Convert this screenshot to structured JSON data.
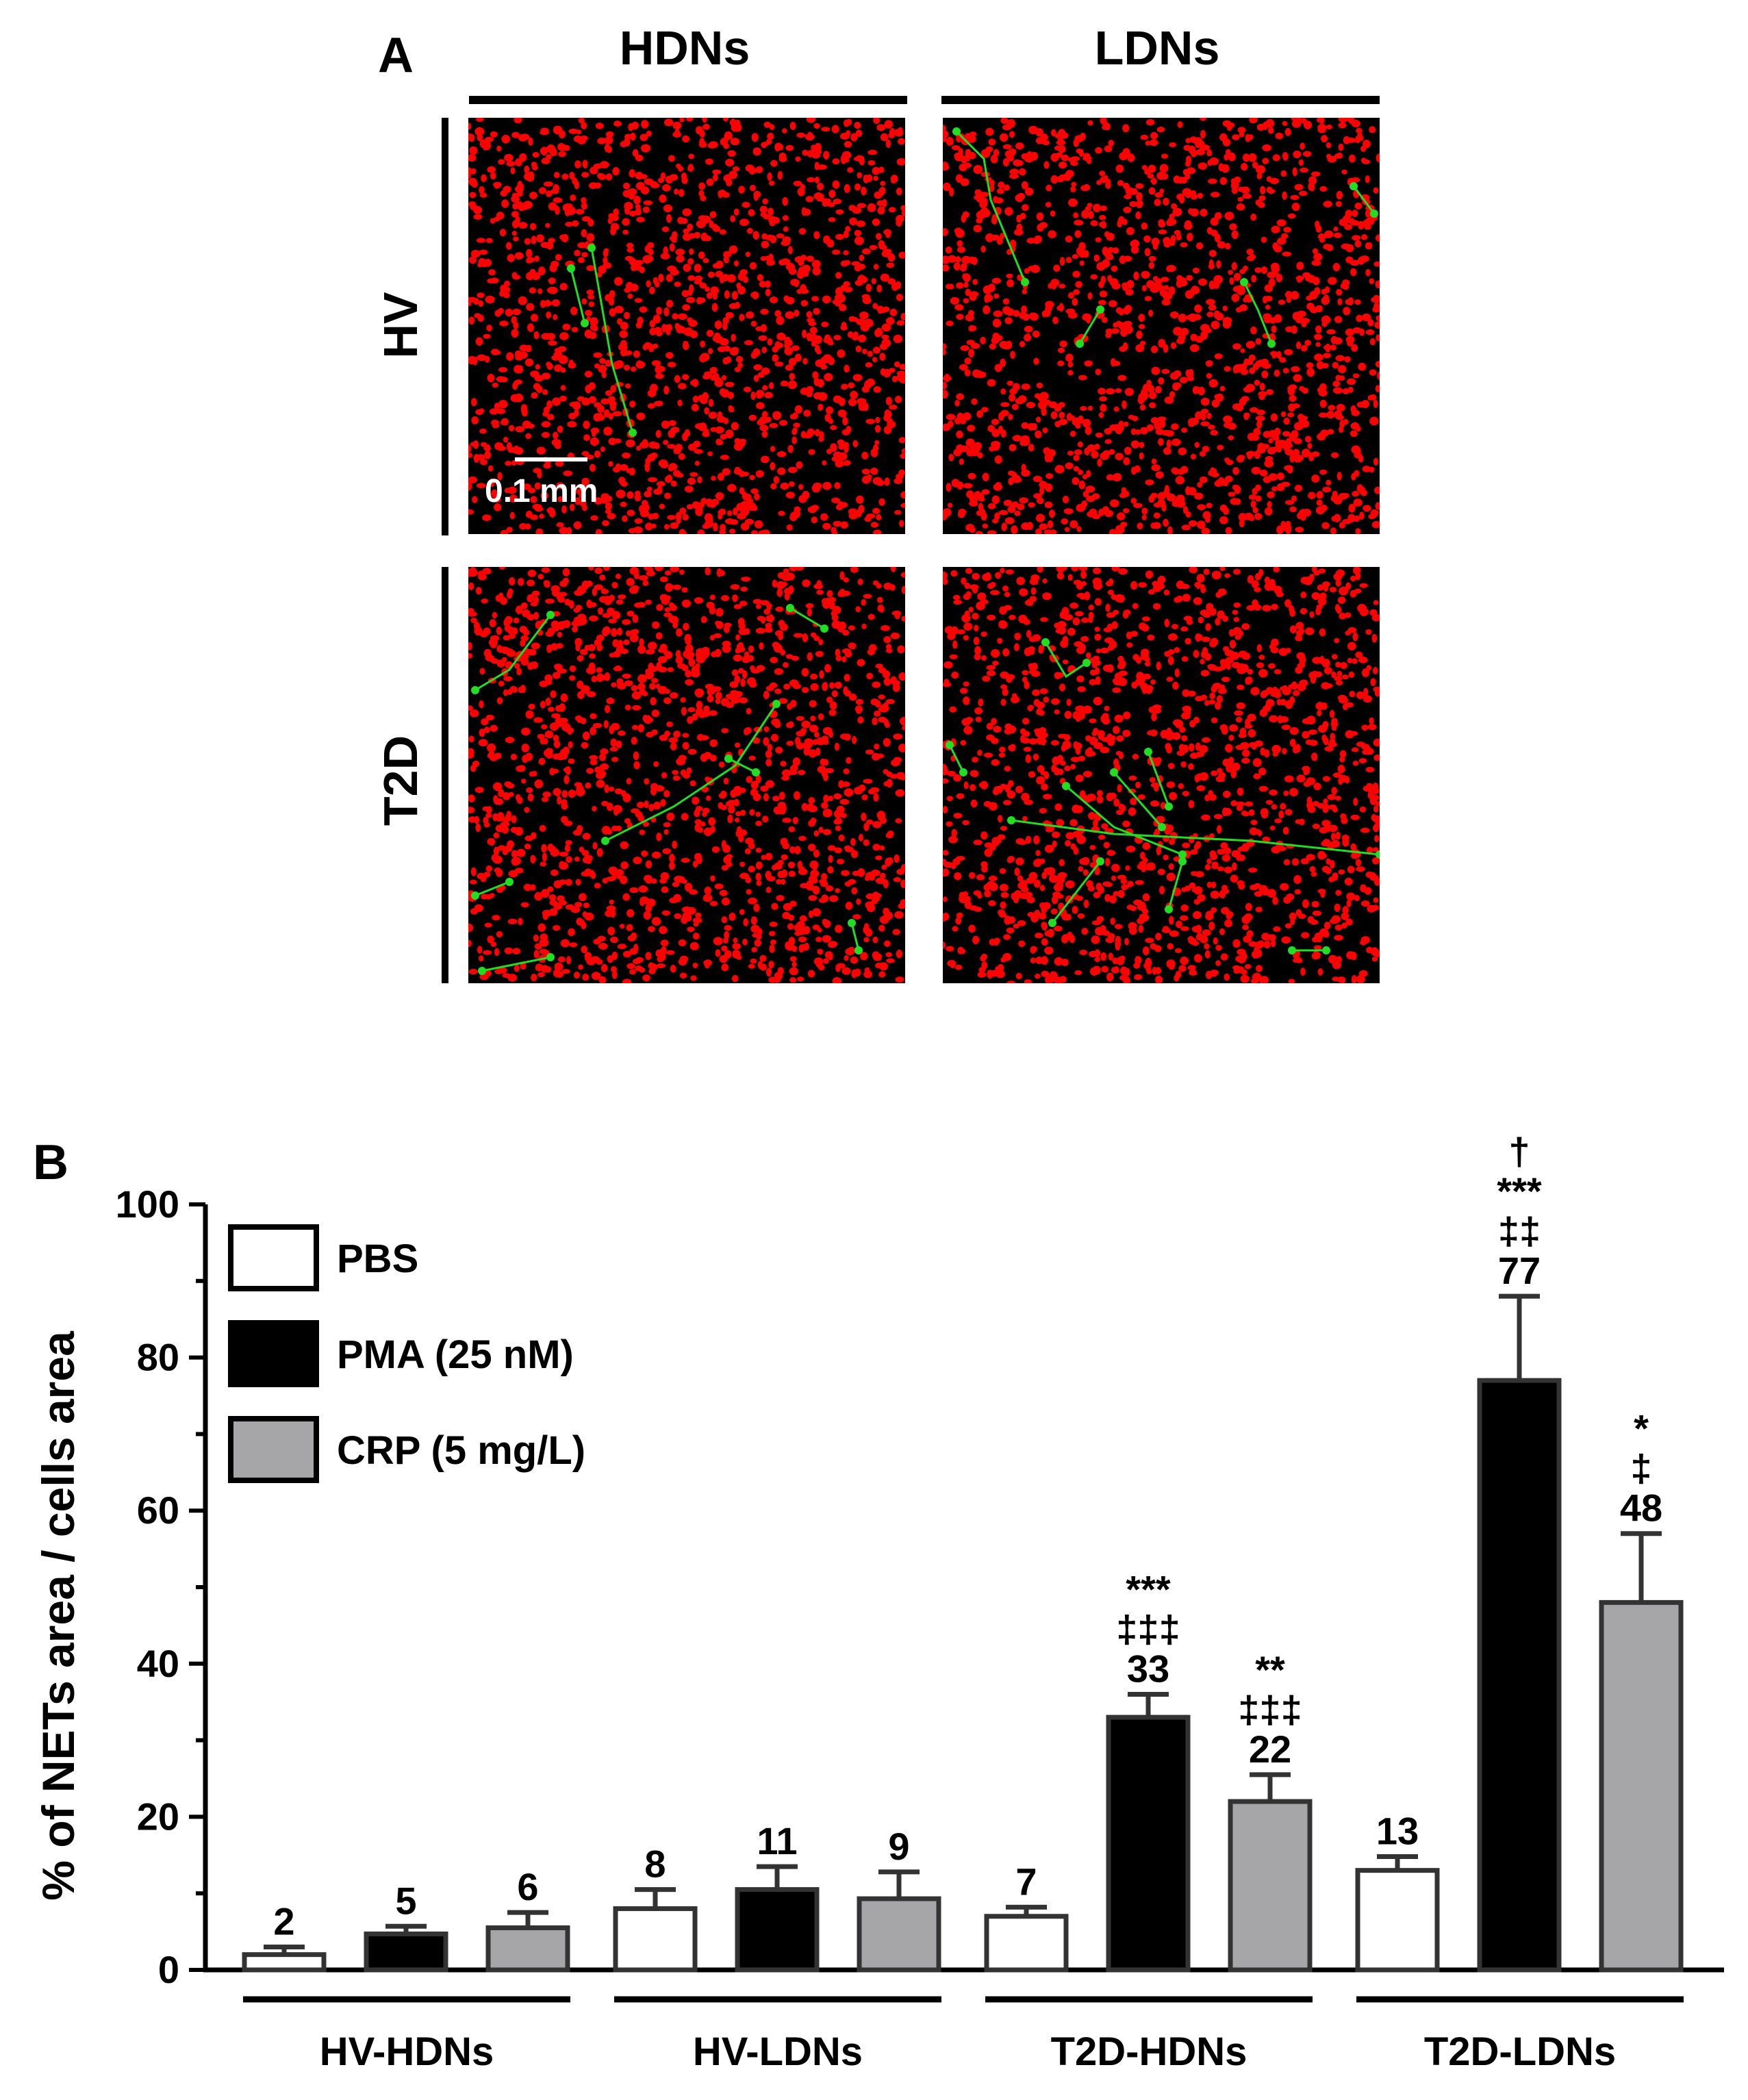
{
  "panel_a": {
    "letter": "A",
    "columns": [
      "HDNs",
      "LDNs"
    ],
    "rows": [
      "HV",
      "T2D"
    ],
    "scale_bar_label": "0.1 mm",
    "image_names": [
      "HV HDNs",
      "HV LDNs",
      "T2D HDNs",
      "T2D LDNs"
    ]
  },
  "colors": {
    "nuclei": "#ff0000",
    "nets": "#22dd22",
    "background": "#000000",
    "pbs": "#ffffff",
    "pma": "#000000",
    "crp": "#a6a6a9"
  },
  "chart_data": {
    "panel_letter": "B",
    "type": "bar",
    "ylabel": "% of NETs area / cells area",
    "ylim": [
      0,
      100
    ],
    "yticks": [
      0,
      20,
      40,
      60,
      80,
      100
    ],
    "grid": false,
    "legend_position": "top-left",
    "groups": [
      "HV-HDNs",
      "HV-LDNs",
      "T2D-HDNs",
      "T2D-LDNs"
    ],
    "series": [
      {
        "name": "PBS",
        "color": "#ffffff",
        "values": [
          2,
          8,
          7,
          13
        ],
        "errors": [
          1,
          2.5,
          1.2,
          1.8
        ],
        "labels": [
          "2",
          "8",
          "7",
          "13"
        ],
        "annotations": [
          [],
          [],
          [],
          []
        ]
      },
      {
        "name": "PMA (25 nM)",
        "color": "#000000",
        "values": [
          4.7,
          10.5,
          33,
          77
        ],
        "errors": [
          1,
          3,
          3,
          11
        ],
        "labels": [
          "5",
          "11",
          "33",
          "77"
        ],
        "annotations": [
          [],
          [],
          [
            "***",
            "‡‡‡"
          ],
          [
            "†",
            "***",
            "‡‡"
          ]
        ]
      },
      {
        "name": "CRP (5 mg/L)",
        "color": "#a6a6a9",
        "values": [
          5.5,
          9.3,
          22,
          48
        ],
        "errors": [
          2,
          3.5,
          3.5,
          9
        ],
        "labels": [
          "6",
          "9",
          "22",
          "48"
        ],
        "annotations": [
          [],
          [],
          [
            "**",
            "‡‡‡"
          ],
          [
            "*",
            "‡"
          ]
        ]
      }
    ]
  }
}
